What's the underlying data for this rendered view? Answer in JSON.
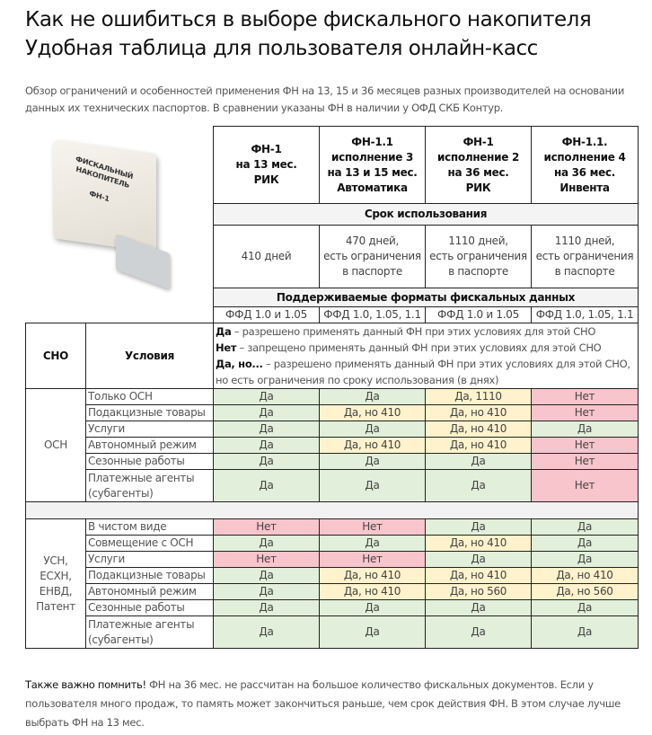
{
  "title": [
    "Как не ошибиться в выборе фискального накопителя",
    "Удобная таблица для пользователя онлайн-касс"
  ],
  "intro": "Обзор ограничений и особенностей применения ФН на 13, 15 и 36 месяцев разных производителей на основании данных их технических паспортов. В сравнении указаны ФН в наличии у ОФД СКБ Контур.",
  "product_image": {
    "label": "ФИСКАЛЬНЫЙ НАКОПИТЕЛЬ ФН-1"
  },
  "columns": [
    [
      "ФН-1",
      "на 13 мес.",
      "РИК"
    ],
    [
      "ФН-1.1",
      "исполнение 3",
      "на 13 и 15 мес.",
      "Автоматика"
    ],
    [
      "ФН-1",
      "исполнение 2",
      "на 36 мес.",
      "РИК"
    ],
    [
      "ФН-1.1.",
      "исполнение 4",
      "на 36 мес.",
      "Инвента"
    ]
  ],
  "usage_label": "Срок использования",
  "usage": [
    [
      "410 дней"
    ],
    [
      "470 дней,",
      "есть ограничения",
      "в паспорте"
    ],
    [
      "1110 дней,",
      "есть ограничения",
      "в паспорте"
    ],
    [
      "1110 дней,",
      "есть ограничения",
      "в паспорте"
    ]
  ],
  "formats_label": "Поддерживаемые форматы фискальных данных",
  "formats": [
    "ФФД 1.0 и 1.05",
    "ФФД 1.0, 1.05, 1.1",
    "ФФД 1.0 и 1.05",
    "ФФД 1.0, 1.05, 1.1"
  ],
  "sno_header": "СНО",
  "cond_header": "Условия",
  "legend": [
    {
      "key": "Да",
      "text": " – разрешено применять данный ФН при этих условиях для этой СНО"
    },
    {
      "key": "Нет",
      "text": " – запрещено применять данный ФН при этих условиях для этой СНО"
    },
    {
      "key": "Да, но...",
      "text": " – разрешено применять данный ФН при этих условиях для этой СНО, но есть ограничения по сроку использования (в днях)"
    }
  ],
  "colors": {
    "yes": "#e2efda",
    "limited": "#fff2cc",
    "no": "#f8c5cc"
  },
  "groups": [
    {
      "sno": [
        "ОСН"
      ],
      "rows": [
        {
          "cond": [
            "Только ОСН"
          ],
          "vals": [
            [
              "Да",
              "g"
            ],
            [
              "Да",
              "g"
            ],
            [
              "Да, 1110",
              "y"
            ],
            [
              "Нет",
              "r"
            ]
          ]
        },
        {
          "cond": [
            "Подакцизные товары"
          ],
          "vals": [
            [
              "Да",
              "g"
            ],
            [
              "Да, но 410",
              "y"
            ],
            [
              "Да, но 410",
              "y"
            ],
            [
              "Нет",
              "r"
            ]
          ]
        },
        {
          "cond": [
            "Услуги"
          ],
          "vals": [
            [
              "Да",
              "g"
            ],
            [
              "Да",
              "g"
            ],
            [
              "Да, но 410",
              "y"
            ],
            [
              "Да",
              "g"
            ]
          ]
        },
        {
          "cond": [
            "Автономный режим"
          ],
          "vals": [
            [
              "Да",
              "g"
            ],
            [
              "Да, но 410",
              "y"
            ],
            [
              "Да, но 410",
              "y"
            ],
            [
              "Нет",
              "r"
            ]
          ]
        },
        {
          "cond": [
            "Сезонные работы"
          ],
          "vals": [
            [
              "Да",
              "g"
            ],
            [
              "Да",
              "g"
            ],
            [
              "Да",
              "g"
            ],
            [
              "Нет",
              "r"
            ]
          ]
        },
        {
          "cond": [
            "Платежные агенты",
            "(субагенты)"
          ],
          "vals": [
            [
              "Да",
              "g"
            ],
            [
              "Да",
              "g"
            ],
            [
              "Да",
              "g"
            ],
            [
              "Нет",
              "r"
            ]
          ]
        }
      ]
    },
    {
      "sno": [
        "УСН,",
        "ЕСХН,",
        "ЕНВД,",
        "Патент"
      ],
      "rows": [
        {
          "cond": [
            "В чистом виде"
          ],
          "vals": [
            [
              "Нет",
              "r"
            ],
            [
              "Нет",
              "r"
            ],
            [
              "Да",
              "g"
            ],
            [
              "Да",
              "g"
            ]
          ]
        },
        {
          "cond": [
            "Совмещение с ОСН"
          ],
          "vals": [
            [
              "Да",
              "g"
            ],
            [
              "Да",
              "g"
            ],
            [
              "Да, но 410",
              "y"
            ],
            [
              "Да",
              "g"
            ]
          ]
        },
        {
          "cond": [
            "Услуги"
          ],
          "vals": [
            [
              "Нет",
              "r"
            ],
            [
              "Нет",
              "r"
            ],
            [
              "Да",
              "g"
            ],
            [
              "Да",
              "g"
            ]
          ]
        },
        {
          "cond": [
            "Подакцизные товары"
          ],
          "vals": [
            [
              "Да",
              "g"
            ],
            [
              "Да, но 410",
              "y"
            ],
            [
              "Да, но 410",
              "y"
            ],
            [
              "Да, но 410",
              "y"
            ]
          ]
        },
        {
          "cond": [
            "Автономный режим"
          ],
          "vals": [
            [
              "Да",
              "g"
            ],
            [
              "Да, но 410",
              "y"
            ],
            [
              "Да, но 560",
              "y"
            ],
            [
              "Да, но 560",
              "y"
            ]
          ]
        },
        {
          "cond": [
            "Сезонные работы"
          ],
          "vals": [
            [
              "Да",
              "g"
            ],
            [
              "Да",
              "g"
            ],
            [
              "Да",
              "g"
            ],
            [
              "Да",
              "g"
            ]
          ]
        },
        {
          "cond": [
            "Платежные агенты",
            "(субагенты)"
          ],
          "vals": [
            [
              "Да",
              "g"
            ],
            [
              "Да",
              "g"
            ],
            [
              "Да",
              "g"
            ],
            [
              "Да",
              "g"
            ]
          ]
        }
      ]
    }
  ],
  "note": {
    "bold": "Также важно помнить!",
    "text": " ФН на 36 мес. не рассчитан на большое количество фискальных документов. Если у пользователя много продаж, то память может закончиться раньше, чем срок действия ФН. В этом случае лучше выбрать ФН на 13 мес."
  }
}
